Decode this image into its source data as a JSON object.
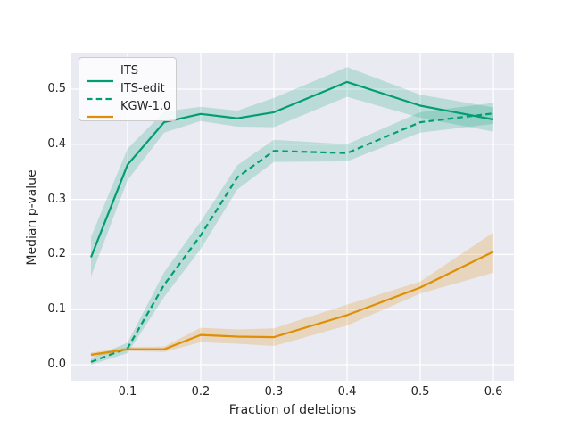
{
  "figure": {
    "background": "#ffffff",
    "text_color": "#262626"
  },
  "chart_data": {
    "type": "line",
    "title": "",
    "xlabel": "Fraction of deletions",
    "ylabel": "Median p-value",
    "grid": true,
    "plot_bg": "#eaeaf2",
    "grid_color": "#ffffff",
    "xlim": [
      0.0232,
      0.628
    ],
    "ylim": [
      -0.0291,
      0.5663
    ],
    "x_tick_values": [
      0.1,
      0.2,
      0.3,
      0.4,
      0.5,
      0.6
    ],
    "x_tick_labels": [
      "0.1",
      "0.2",
      "0.3",
      "0.4",
      "0.5",
      "0.6"
    ],
    "y_tick_values": [
      0.0,
      0.1,
      0.2,
      0.3,
      0.4,
      0.5
    ],
    "y_tick_labels": [
      "0.0",
      "0.1",
      "0.2",
      "0.3",
      "0.4",
      "0.5"
    ],
    "legend_position": "upper-left",
    "x": [
      0.05,
      0.1,
      0.15,
      0.2,
      0.25,
      0.3,
      0.4,
      0.5,
      0.6
    ],
    "series": [
      {
        "name": "ITS",
        "color": "#029e73",
        "line_style": "solid",
        "band_alpha": 0.2,
        "values": [
          0.195,
          0.363,
          0.44,
          0.455,
          0.447,
          0.458,
          0.513,
          0.47,
          0.445
        ],
        "band_lower": [
          0.16,
          0.335,
          0.421,
          0.442,
          0.432,
          0.431,
          0.486,
          0.448,
          0.423
        ],
        "band_upper": [
          0.232,
          0.392,
          0.459,
          0.468,
          0.461,
          0.484,
          0.54,
          0.49,
          0.467
        ]
      },
      {
        "name": "ITS-edit",
        "color": "#029e73",
        "line_style": "dashed",
        "band_alpha": 0.2,
        "values": [
          0.005,
          0.03,
          0.145,
          0.235,
          0.34,
          0.388,
          0.384,
          0.44,
          0.456
        ],
        "band_lower": [
          0.0,
          0.021,
          0.123,
          0.21,
          0.318,
          0.368,
          0.369,
          0.421,
          0.437
        ],
        "band_upper": [
          0.012,
          0.04,
          0.168,
          0.26,
          0.362,
          0.408,
          0.4,
          0.458,
          0.475
        ]
      },
      {
        "name": "KGW-1.0",
        "color": "#de8f05",
        "line_style": "solid",
        "band_alpha": 0.22,
        "values": [
          0.018,
          0.028,
          0.028,
          0.054,
          0.051,
          0.05,
          0.09,
          0.14,
          0.205
        ],
        "band_lower": [
          0.014,
          0.025,
          0.023,
          0.041,
          0.038,
          0.034,
          0.071,
          0.129,
          0.167
        ],
        "band_upper": [
          0.022,
          0.032,
          0.033,
          0.067,
          0.064,
          0.066,
          0.109,
          0.151,
          0.24
        ]
      }
    ]
  }
}
